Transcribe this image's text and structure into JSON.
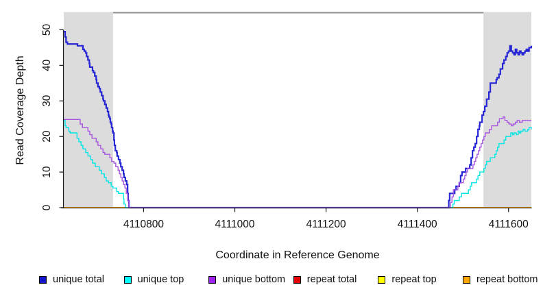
{
  "chart_data": {
    "type": "line",
    "step": "after",
    "title": "",
    "xlabel": "Coordinate in Reference Genome",
    "ylabel": "Read Coverage Depth",
    "xlim": [
      4110625,
      4111650
    ],
    "ylim": [
      0,
      55
    ],
    "grid": false,
    "x_ticks": [
      {
        "value": 4110800,
        "label": "4110800"
      },
      {
        "value": 4111000,
        "label": "4111000"
      },
      {
        "value": 4111200,
        "label": "4111200"
      },
      {
        "value": 4111400,
        "label": "4111400"
      },
      {
        "value": 4111600,
        "label": "4111600"
      }
    ],
    "y_ticks": [
      {
        "value": 0,
        "label": "0"
      },
      {
        "value": 10,
        "label": "10"
      },
      {
        "value": 20,
        "label": "20"
      },
      {
        "value": 30,
        "label": "30"
      },
      {
        "value": 40,
        "label": "40"
      },
      {
        "value": 50,
        "label": "50"
      }
    ],
    "top_rule": {
      "y_value": 54.8,
      "color": "#8e8e8e",
      "width": 2
    },
    "shaded_regions": [
      {
        "x0": 4110625,
        "x1": 4110733,
        "color": "#dcdcdc"
      },
      {
        "x0": 4111545,
        "x1": 4111650,
        "color": "#dcdcdc"
      }
    ],
    "axis_color": "#1a1a1a",
    "series": [
      {
        "name": "repeat total",
        "color": "#dd0000",
        "width": 1.4,
        "points": [
          [
            4110625,
            0
          ],
          [
            4111650,
            0
          ]
        ]
      },
      {
        "name": "repeat top",
        "color": "#ffff00",
        "width": 1.4,
        "points": [
          [
            4110625,
            0
          ],
          [
            4111650,
            0
          ]
        ]
      },
      {
        "name": "repeat bottom",
        "color": "#ff9f00",
        "width": 1.7,
        "points": [
          [
            4110625,
            0
          ],
          [
            4111650,
            0
          ]
        ]
      },
      {
        "name": "unique top",
        "color": "#00e6e6",
        "width": 1.4,
        "points": [
          [
            4110625,
            24.5
          ],
          [
            4110628,
            23
          ],
          [
            4110630,
            22.5
          ],
          [
            4110636,
            21.5
          ],
          [
            4110639,
            21
          ],
          [
            4110654,
            19.5
          ],
          [
            4110658,
            18.5
          ],
          [
            4110663,
            17.5
          ],
          [
            4110667,
            16.5
          ],
          [
            4110673,
            15.5
          ],
          [
            4110678,
            14.5
          ],
          [
            4110684,
            13.5
          ],
          [
            4110688,
            12.5
          ],
          [
            4110694,
            11.5
          ],
          [
            4110703,
            10.5
          ],
          [
            4110708,
            9.5
          ],
          [
            4110714,
            8.5
          ],
          [
            4110718,
            7.5
          ],
          [
            4110723,
            7
          ],
          [
            4110729,
            6
          ],
          [
            4110733,
            5.5
          ],
          [
            4110741,
            4.5
          ],
          [
            4110745,
            4
          ],
          [
            4110756,
            2.5
          ],
          [
            4110757,
            1
          ],
          [
            4110760,
            0
          ],
          [
            4111478,
            1
          ],
          [
            4111481,
            2
          ],
          [
            4111492,
            3
          ],
          [
            4111497,
            4
          ],
          [
            4111512,
            5
          ],
          [
            4111516,
            6
          ],
          [
            4111519,
            7
          ],
          [
            4111530,
            8
          ],
          [
            4111533,
            9
          ],
          [
            4111537,
            10
          ],
          [
            4111546,
            11
          ],
          [
            4111549,
            12
          ],
          [
            4111552,
            13
          ],
          [
            4111560,
            14
          ],
          [
            4111570,
            15
          ],
          [
            4111573,
            16
          ],
          [
            4111576,
            17
          ],
          [
            4111579,
            18
          ],
          [
            4111590,
            19
          ],
          [
            4111594,
            20
          ],
          [
            4111605,
            21
          ],
          [
            4111609,
            20.5
          ],
          [
            4111612,
            21
          ],
          [
            4111617,
            20.5
          ],
          [
            4111621,
            21.5
          ],
          [
            4111624,
            21
          ],
          [
            4111627,
            21.5
          ],
          [
            4111632,
            22
          ],
          [
            4111636,
            21.5
          ],
          [
            4111642,
            22
          ],
          [
            4111645,
            22.5
          ],
          [
            4111650,
            22
          ]
        ]
      },
      {
        "name": "unique total",
        "color": "#2626d4",
        "width": 2.2,
        "points": [
          [
            4110625,
            49.5
          ],
          [
            4110628,
            48
          ],
          [
            4110630,
            46.5
          ],
          [
            4110633,
            46
          ],
          [
            4110655,
            45.5
          ],
          [
            4110667,
            44.5
          ],
          [
            4110670,
            44
          ],
          [
            4110673,
            43.5
          ],
          [
            4110675,
            42.5
          ],
          [
            4110678,
            41.5
          ],
          [
            4110681,
            40.5
          ],
          [
            4110682,
            39.5
          ],
          [
            4110688,
            38.5
          ],
          [
            4110690,
            38
          ],
          [
            4110693,
            37
          ],
          [
            4110696,
            36
          ],
          [
            4110697,
            35
          ],
          [
            4110700,
            34
          ],
          [
            4110703,
            33.5
          ],
          [
            4110705,
            32.5
          ],
          [
            4110708,
            31.5
          ],
          [
            4110711,
            30.5
          ],
          [
            4110712,
            30
          ],
          [
            4110715,
            29
          ],
          [
            4110718,
            28
          ],
          [
            4110721,
            27
          ],
          [
            4110723,
            26
          ],
          [
            4110724,
            25.5
          ],
          [
            4110726,
            25
          ],
          [
            4110727,
            24
          ],
          [
            4110729,
            23.5
          ],
          [
            4110730,
            22.5
          ],
          [
            4110732,
            21.5
          ],
          [
            4110733,
            21
          ],
          [
            4110735,
            19
          ],
          [
            4110736,
            17.5
          ],
          [
            4110738,
            16
          ],
          [
            4110741,
            15.5
          ],
          [
            4110742,
            14.5
          ],
          [
            4110745,
            13.5
          ],
          [
            4110748,
            12.5
          ],
          [
            4110750,
            11.5
          ],
          [
            4110753,
            10.5
          ],
          [
            4110756,
            9.5
          ],
          [
            4110757,
            8.5
          ],
          [
            4110760,
            7.5
          ],
          [
            4110763,
            6.5
          ],
          [
            4110765,
            4
          ],
          [
            4110766,
            2
          ],
          [
            4110768,
            0
          ],
          [
            4111469,
            2
          ],
          [
            4111471,
            4
          ],
          [
            4111482,
            5
          ],
          [
            4111485,
            6
          ],
          [
            4111492,
            7
          ],
          [
            4111495,
            9
          ],
          [
            4111498,
            10
          ],
          [
            4111506,
            11
          ],
          [
            4111515,
            12
          ],
          [
            4111518,
            14
          ],
          [
            4111521,
            16
          ],
          [
            4111524,
            17
          ],
          [
            4111527,
            18
          ],
          [
            4111530,
            20
          ],
          [
            4111533,
            22
          ],
          [
            4111536,
            23
          ],
          [
            4111537,
            24
          ],
          [
            4111542,
            26
          ],
          [
            4111545,
            27
          ],
          [
            4111548,
            28.5
          ],
          [
            4111552,
            30.5
          ],
          [
            4111557,
            32.5
          ],
          [
            4111560,
            35
          ],
          [
            4111573,
            36
          ],
          [
            4111575,
            36.5
          ],
          [
            4111579,
            37.5
          ],
          [
            4111582,
            39
          ],
          [
            4111587,
            40.5
          ],
          [
            4111590,
            41.5
          ],
          [
            4111594,
            42.5
          ],
          [
            4111597,
            43.5
          ],
          [
            4111600,
            44
          ],
          [
            4111603,
            45.5
          ],
          [
            4111606,
            44
          ],
          [
            4111609,
            43.5
          ],
          [
            4111612,
            43
          ],
          [
            4111615,
            44.5
          ],
          [
            4111618,
            43.5
          ],
          [
            4111621,
            43
          ],
          [
            4111624,
            44
          ],
          [
            4111627,
            43.5
          ],
          [
            4111630,
            43
          ],
          [
            4111633,
            43.5
          ],
          [
            4111636,
            44
          ],
          [
            4111639,
            44.5
          ],
          [
            4111642,
            44
          ],
          [
            4111645,
            45
          ],
          [
            4111650,
            45.5
          ]
        ]
      },
      {
        "name": "unique bottom",
        "color": "#a855e0",
        "width": 1.4,
        "points": [
          [
            4110625,
            24.8
          ],
          [
            4110661,
            23.5
          ],
          [
            4110666,
            22.5
          ],
          [
            4110678,
            21.5
          ],
          [
            4110682,
            20.5
          ],
          [
            4110687,
            19.5
          ],
          [
            4110696,
            18.5
          ],
          [
            4110700,
            17.5
          ],
          [
            4110706,
            16.5
          ],
          [
            4110711,
            15.5
          ],
          [
            4110715,
            15
          ],
          [
            4110726,
            14
          ],
          [
            4110730,
            13
          ],
          [
            4110735,
            12.5
          ],
          [
            4110739,
            11.5
          ],
          [
            4110744,
            10.5
          ],
          [
            4110747,
            9.5
          ],
          [
            4110750,
            8.5
          ],
          [
            4110753,
            7.5
          ],
          [
            4110756,
            6.5
          ],
          [
            4110759,
            5.5
          ],
          [
            4110762,
            4
          ],
          [
            4110765,
            2
          ],
          [
            4110768,
            0
          ],
          [
            4111473,
            1.5
          ],
          [
            4111476,
            3
          ],
          [
            4111479,
            5
          ],
          [
            4111489,
            6
          ],
          [
            4111492,
            7
          ],
          [
            4111501,
            8
          ],
          [
            4111504,
            9
          ],
          [
            4111507,
            10
          ],
          [
            4111510,
            11
          ],
          [
            4111522,
            12
          ],
          [
            4111525,
            13
          ],
          [
            4111528,
            14
          ],
          [
            4111531,
            15
          ],
          [
            4111534,
            16
          ],
          [
            4111537,
            17
          ],
          [
            4111540,
            18
          ],
          [
            4111543,
            19
          ],
          [
            4111546,
            20
          ],
          [
            4111549,
            21
          ],
          [
            4111558,
            22
          ],
          [
            4111563,
            23
          ],
          [
            4111576,
            24
          ],
          [
            4111580,
            25
          ],
          [
            4111588,
            25.5
          ],
          [
            4111592,
            24.5
          ],
          [
            4111597,
            24
          ],
          [
            4111601,
            23.5
          ],
          [
            4111606,
            23
          ],
          [
            4111610,
            23.5
          ],
          [
            4111615,
            24
          ],
          [
            4111619,
            24.5
          ],
          [
            4111624,
            24
          ],
          [
            4111630,
            24.5
          ],
          [
            4111650,
            24.5
          ]
        ]
      }
    ]
  },
  "legend": {
    "items": [
      {
        "label": "unique total",
        "color": "#1414cc"
      },
      {
        "label": "unique top",
        "color": "#00ffff"
      },
      {
        "label": "unique bottom",
        "color": "#a020f0"
      },
      {
        "label": "repeat total",
        "color": "#e60000"
      },
      {
        "label": "repeat top",
        "color": "#ffff00"
      },
      {
        "label": "repeat bottom",
        "color": "#ffa500"
      }
    ]
  }
}
